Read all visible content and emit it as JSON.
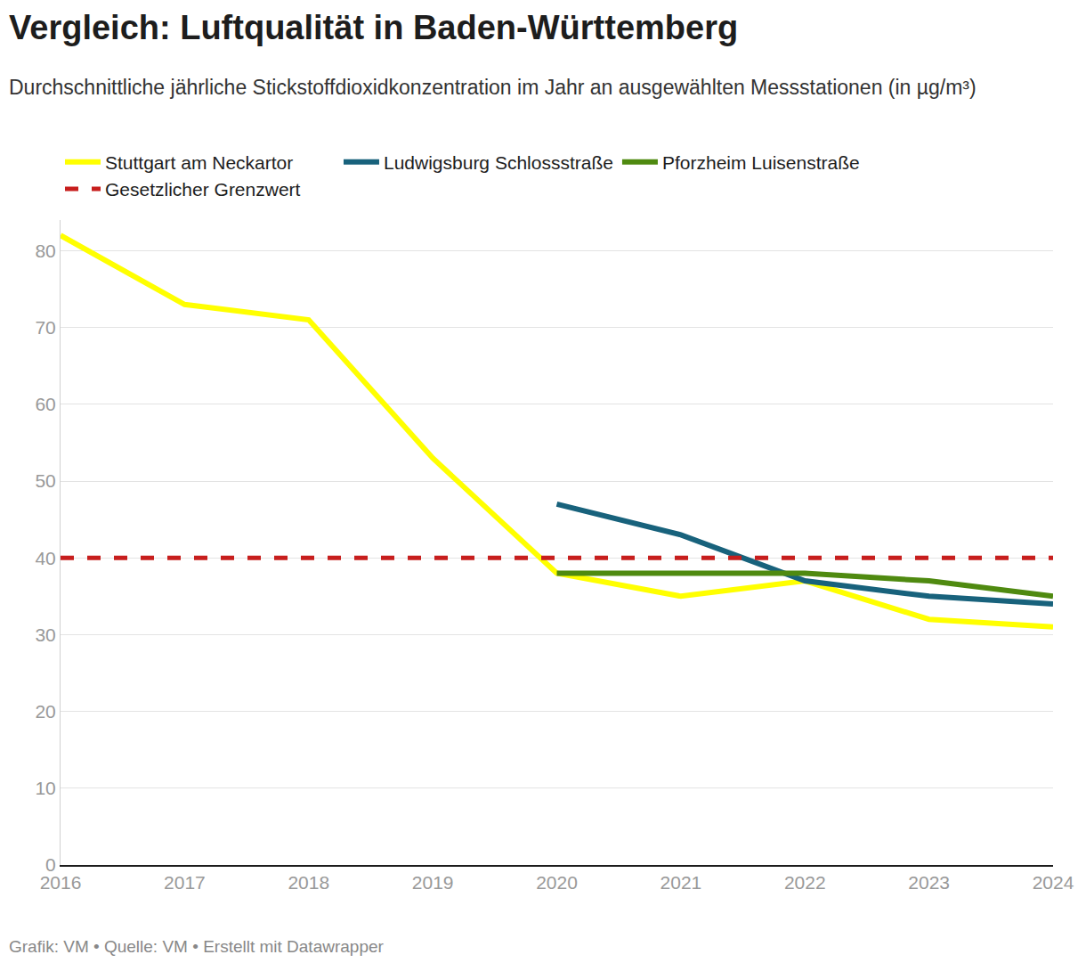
{
  "chart_data": {
    "type": "line",
    "title": "Vergleich: Luftqualität in Baden-Württemberg",
    "subtitle": "Durchschnittliche jährliche Stickstoffdioxidkonzentration im Jahr an ausgewählten Messstationen (in µg/m³)",
    "caption": "Grafik: VM • Quelle: VM • Erstellt mit Datawrapper",
    "x": [
      2016,
      2017,
      2018,
      2019,
      2020,
      2021,
      2022,
      2023,
      2024
    ],
    "series": [
      {
        "name": "Stuttgart am Neckartor",
        "color": "#ffff00",
        "line_style": "solid",
        "values": [
          82,
          73,
          71,
          53,
          38,
          35,
          37,
          32,
          31
        ]
      },
      {
        "name": "Ludwigsburg Schlossstraße",
        "color": "#18627c",
        "line_style": "solid",
        "values": [
          null,
          null,
          null,
          null,
          47,
          43,
          37,
          35,
          34
        ]
      },
      {
        "name": "Pforzheim Luisenstraße",
        "color": "#4f8a10",
        "line_style": "solid",
        "values": [
          null,
          null,
          null,
          null,
          38,
          38,
          38,
          37,
          35
        ]
      },
      {
        "name": "Gesetzlicher Grenzwert",
        "color": "#c71e1d",
        "line_style": "dash",
        "values": [
          40,
          40,
          40,
          40,
          40,
          40,
          40,
          40,
          40
        ]
      }
    ],
    "xlim": [
      2016,
      2024
    ],
    "xticks": [
      2016,
      2017,
      2018,
      2019,
      2020,
      2021,
      2022,
      2023,
      2024
    ],
    "ylim": [
      0,
      84
    ],
    "yticks": [
      0,
      10,
      20,
      30,
      40,
      50,
      60,
      70,
      80
    ],
    "grid": true,
    "legend": "top"
  }
}
